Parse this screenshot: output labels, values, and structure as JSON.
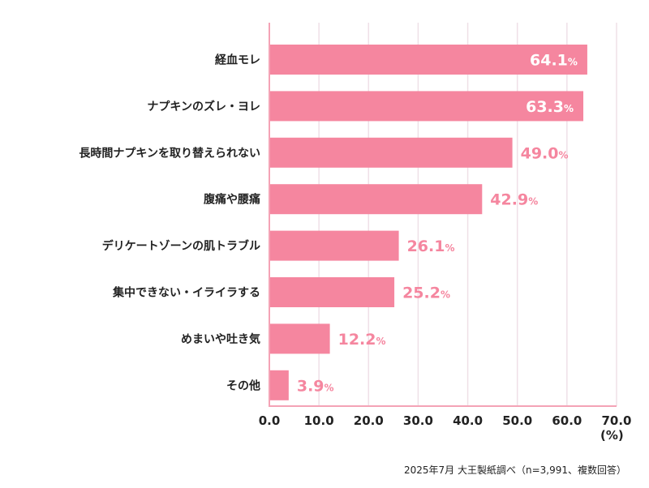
{
  "chart_data": {
    "type": "bar",
    "orientation": "horizontal",
    "categories": [
      "経血モレ",
      "ナプキンのズレ・ヨレ",
      "長時間ナプキンを取り替えられない",
      "腹痛や腰痛",
      "デリケートゾーンの肌トラブル",
      "集中できない・イライラする",
      "めまいや吐き気",
      "その他"
    ],
    "values": [
      64.1,
      63.3,
      49.0,
      42.9,
      26.1,
      25.2,
      12.2,
      3.9
    ],
    "value_suffix": "%",
    "xlim": [
      0,
      70
    ],
    "xticks": [
      "0.0",
      "10.0",
      "20.0",
      "30.0",
      "40.0",
      "50.0",
      "60.0",
      "70.0"
    ],
    "xlabel": "(%)",
    "grid": true,
    "colors": {
      "bar": "#f5869f",
      "grid": "#efe0e7",
      "axis": "#f4a3b6",
      "label_inside": "#ffffff"
    }
  },
  "footnote": "2025年7月 大王製紙調べ（n=3,991、複数回答）"
}
